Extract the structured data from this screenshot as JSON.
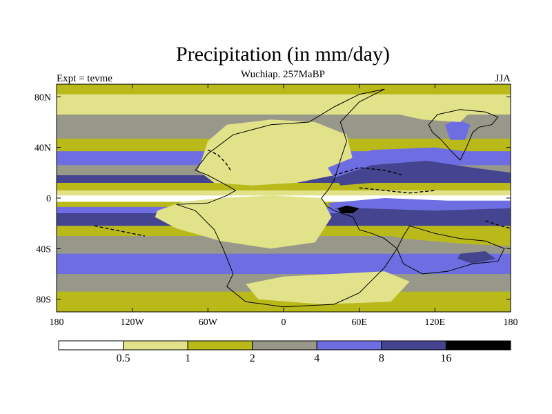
{
  "chart_data": {
    "type": "heatmap",
    "title": "Precipitation (in mm/day)",
    "subtitle": "Wuchiap. 257MaBP",
    "left_label": "Expt = tevme",
    "right_label": "JJA",
    "xlabel": "",
    "ylabel": "",
    "xlim": [
      -180,
      180
    ],
    "ylim": [
      -90,
      90
    ],
    "x_ticks": [
      {
        "value": -180,
        "label": "180"
      },
      {
        "value": -120,
        "label": "120W"
      },
      {
        "value": -60,
        "label": "60W"
      },
      {
        "value": 0,
        "label": "0"
      },
      {
        "value": 60,
        "label": "60E"
      },
      {
        "value": 120,
        "label": "120E"
      },
      {
        "value": 180,
        "label": "180"
      }
    ],
    "y_ticks": [
      {
        "value": 80,
        "label": "80N"
      },
      {
        "value": 40,
        "label": "40N"
      },
      {
        "value": 0,
        "label": "0"
      },
      {
        "value": -40,
        "label": "40S"
      },
      {
        "value": -80,
        "label": "80S"
      }
    ],
    "colorbar": {
      "levels": [
        "0.5",
        "1",
        "2",
        "4",
        "8",
        "16"
      ],
      "colors": [
        "#ffffff",
        "#e2e28a",
        "#b9b91a",
        "#98988a",
        "#6e6ee2",
        "#444490",
        "#000000"
      ]
    },
    "zonal_bands": [
      {
        "lat_top": 90,
        "lat_bottom": 82,
        "color_index": 2
      },
      {
        "lat_top": 82,
        "lat_bottom": 66,
        "color_index": 1
      },
      {
        "lat_top": 66,
        "lat_bottom": 47,
        "color_index": 3
      },
      {
        "lat_top": 47,
        "lat_bottom": 37,
        "color_index": 2
      },
      {
        "lat_top": 37,
        "lat_bottom": 26,
        "color_index": 4
      },
      {
        "lat_top": 26,
        "lat_bottom": 18,
        "color_index": 3
      },
      {
        "lat_top": 18,
        "lat_bottom": 12,
        "color_index": 5
      },
      {
        "lat_top": 12,
        "lat_bottom": 6,
        "color_index": 2
      },
      {
        "lat_top": 6,
        "lat_bottom": 2,
        "color_index": 1
      },
      {
        "lat_top": 2,
        "lat_bottom": -3,
        "color_index": 0
      },
      {
        "lat_top": -3,
        "lat_bottom": -7,
        "color_index": 2
      },
      {
        "lat_top": -7,
        "lat_bottom": -12,
        "color_index": 4
      },
      {
        "lat_top": -12,
        "lat_bottom": -22,
        "color_index": 5
      },
      {
        "lat_top": -22,
        "lat_bottom": -30,
        "color_index": 2
      },
      {
        "lat_top": -30,
        "lat_bottom": -44,
        "color_index": 3
      },
      {
        "lat_top": -44,
        "lat_bottom": -60,
        "color_index": 4
      },
      {
        "lat_top": -60,
        "lat_bottom": -74,
        "color_index": 3
      },
      {
        "lat_top": -74,
        "lat_bottom": -90,
        "color_index": 2
      }
    ],
    "regions": [
      {
        "name": "NH interior dry zone",
        "color_index": 0,
        "lonlat": [
          [
            -55,
            35
          ],
          [
            -40,
            50
          ],
          [
            -15,
            55
          ],
          [
            20,
            52
          ],
          [
            40,
            45
          ],
          [
            45,
            30
          ],
          [
            35,
            22
          ],
          [
            15,
            20
          ],
          [
            -10,
            22
          ],
          [
            -30,
            18
          ],
          [
            -50,
            20
          ],
          [
            -58,
            28
          ]
        ]
      },
      {
        "name": "NH dry margin",
        "color_index": 1,
        "lonlat": [
          [
            -65,
            30
          ],
          [
            -60,
            45
          ],
          [
            -45,
            58
          ],
          [
            -10,
            62
          ],
          [
            25,
            60
          ],
          [
            50,
            50
          ],
          [
            55,
            30
          ],
          [
            40,
            18
          ],
          [
            10,
            12
          ],
          [
            -25,
            10
          ],
          [
            -55,
            12
          ],
          [
            -68,
            22
          ]
        ]
      },
      {
        "name": "SH interior dry zone",
        "color_index": 0,
        "lonlat": [
          [
            -90,
            -10
          ],
          [
            -70,
            -4
          ],
          [
            -40,
            -3
          ],
          [
            0,
            -2
          ],
          [
            25,
            -6
          ],
          [
            30,
            -20
          ],
          [
            10,
            -30
          ],
          [
            -20,
            -32
          ],
          [
            -50,
            -22
          ],
          [
            -75,
            -18
          ],
          [
            -92,
            -14
          ]
        ]
      },
      {
        "name": "SH dry margin",
        "color_index": 1,
        "lonlat": [
          [
            -100,
            -10
          ],
          [
            -80,
            -3
          ],
          [
            -50,
            0
          ],
          [
            -10,
            2
          ],
          [
            30,
            0
          ],
          [
            38,
            -15
          ],
          [
            25,
            -35
          ],
          [
            -10,
            -40
          ],
          [
            -50,
            -34
          ],
          [
            -85,
            -24
          ],
          [
            -102,
            -15
          ]
        ]
      },
      {
        "name": "Southern high-latitude dry patch",
        "color_index": 0,
        "lonlat": [
          [
            50,
            -68
          ],
          [
            70,
            -64
          ],
          [
            90,
            -70
          ],
          [
            80,
            -80
          ],
          [
            55,
            -80
          ],
          [
            45,
            -74
          ]
        ]
      },
      {
        "name": "Southern high-latitude margin",
        "color_index": 1,
        "lonlat": [
          [
            -30,
            -68
          ],
          [
            0,
            -62
          ],
          [
            40,
            -60
          ],
          [
            80,
            -58
          ],
          [
            100,
            -66
          ],
          [
            85,
            -82
          ],
          [
            30,
            -84
          ],
          [
            -20,
            -80
          ]
        ]
      },
      {
        "name": "Tethys wet band",
        "color_index": 5,
        "lonlat": [
          [
            40,
            18
          ],
          [
            70,
            28
          ],
          [
            110,
            30
          ],
          [
            150,
            24
          ],
          [
            180,
            20
          ],
          [
            180,
            12
          ],
          [
            150,
            14
          ],
          [
            110,
            16
          ],
          [
            70,
            12
          ],
          [
            45,
            10
          ]
        ]
      },
      {
        "name": "Tethys wet fringe",
        "color_index": 4,
        "lonlat": [
          [
            35,
            24
          ],
          [
            70,
            38
          ],
          [
            120,
            40
          ],
          [
            180,
            32
          ],
          [
            180,
            26
          ],
          [
            120,
            30
          ],
          [
            70,
            26
          ],
          [
            40,
            16
          ]
        ]
      },
      {
        "name": "Eastern wet cell",
        "color_index": 5,
        "lonlat": [
          [
            40,
            -8
          ],
          [
            70,
            -4
          ],
          [
            110,
            -8
          ],
          [
            150,
            -6
          ],
          [
            180,
            -6
          ],
          [
            180,
            -20
          ],
          [
            140,
            -22
          ],
          [
            90,
            -18
          ],
          [
            55,
            -14
          ]
        ]
      },
      {
        "name": "Eastern wet cell fringe",
        "color_index": 4,
        "lonlat": [
          [
            35,
            -4
          ],
          [
            80,
            0
          ],
          [
            130,
            -2
          ],
          [
            180,
            -2
          ],
          [
            180,
            -8
          ],
          [
            120,
            -10
          ],
          [
            60,
            -8
          ],
          [
            38,
            -8
          ]
        ]
      },
      {
        "name": "Subtropical dry tongue east",
        "color_index": 2,
        "lonlat": [
          [
            80,
            -22
          ],
          [
            120,
            -26
          ],
          [
            170,
            -30
          ],
          [
            180,
            -30
          ],
          [
            180,
            -38
          ],
          [
            140,
            -36
          ],
          [
            95,
            -32
          ],
          [
            75,
            -28
          ]
        ]
      },
      {
        "name": "Northern highland wet",
        "color_index": 4,
        "lonlat": [
          [
            128,
            58
          ],
          [
            138,
            62
          ],
          [
            148,
            58
          ],
          [
            144,
            46
          ],
          [
            132,
            46
          ]
        ]
      },
      {
        "name": "Subpolar dry patch",
        "color_index": 1,
        "lonlat": [
          [
            90,
            72
          ],
          [
            120,
            74
          ],
          [
            150,
            70
          ],
          [
            140,
            60
          ],
          [
            110,
            62
          ],
          [
            92,
            66
          ]
        ]
      },
      {
        "name": "Southern wet cell",
        "color_index": 5,
        "lonlat": [
          [
            140,
            -44
          ],
          [
            160,
            -42
          ],
          [
            168,
            -48
          ],
          [
            150,
            -52
          ],
          [
            138,
            -48
          ]
        ]
      },
      {
        "name": "Maximum precipitation core",
        "color_index": 6,
        "lonlat": [
          [
            43,
            -8
          ],
          [
            50,
            -6
          ],
          [
            60,
            -8
          ],
          [
            55,
            -12
          ],
          [
            45,
            -12
          ]
        ]
      }
    ],
    "coastlines": [
      {
        "name": "Pangea",
        "lonlat": [
          [
            -60,
            18
          ],
          [
            -70,
            22
          ],
          [
            -60,
            35
          ],
          [
            -40,
            50
          ],
          [
            -10,
            58
          ],
          [
            20,
            60
          ],
          [
            40,
            72
          ],
          [
            60,
            82
          ],
          [
            80,
            86
          ],
          [
            60,
            76
          ],
          [
            45,
            60
          ],
          [
            50,
            45
          ],
          [
            45,
            30
          ],
          [
            40,
            14
          ],
          [
            35,
            6
          ],
          [
            30,
            0
          ],
          [
            34,
            -6
          ],
          [
            40,
            -10
          ],
          [
            55,
            -15
          ],
          [
            60,
            -25
          ],
          [
            70,
            -28
          ],
          [
            80,
            -32
          ],
          [
            90,
            -40
          ],
          [
            80,
            -55
          ],
          [
            70,
            -65
          ],
          [
            60,
            -75
          ],
          [
            40,
            -84
          ],
          [
            0,
            -86
          ],
          [
            -30,
            -82
          ],
          [
            -45,
            -70
          ],
          [
            -40,
            -60
          ],
          [
            -48,
            -40
          ],
          [
            -55,
            -25
          ],
          [
            -70,
            -10
          ],
          [
            -85,
            -5
          ],
          [
            -60,
            -4
          ],
          [
            -45,
            2
          ],
          [
            -38,
            6
          ],
          [
            -45,
            10
          ],
          [
            -60,
            18
          ]
        ]
      },
      {
        "name": "Eastern block",
        "lonlat": [
          [
            115,
            58
          ],
          [
            122,
            66
          ],
          [
            140,
            70
          ],
          [
            160,
            68
          ],
          [
            170,
            64
          ],
          [
            165,
            58
          ],
          [
            155,
            56
          ],
          [
            150,
            52
          ],
          [
            145,
            40
          ],
          [
            140,
            30
          ],
          [
            132,
            38
          ],
          [
            125,
            46
          ],
          [
            118,
            52
          ],
          [
            115,
            58
          ]
        ]
      },
      {
        "name": "Southern landmass",
        "lonlat": [
          [
            100,
            -22
          ],
          [
            120,
            -28
          ],
          [
            140,
            -32
          ],
          [
            160,
            -34
          ],
          [
            175,
            -40
          ],
          [
            170,
            -50
          ],
          [
            150,
            -52
          ],
          [
            130,
            -58
          ],
          [
            110,
            -60
          ],
          [
            95,
            -52
          ],
          [
            90,
            -40
          ],
          [
            95,
            -30
          ],
          [
            100,
            -22
          ]
        ]
      },
      {
        "name": "Island arc 1",
        "lonlat": [
          [
            -60,
            38
          ],
          [
            -52,
            34
          ],
          [
            -46,
            28
          ],
          [
            -42,
            22
          ]
        ]
      },
      {
        "name": "Island arc 2",
        "lonlat": [
          [
            40,
            18
          ],
          [
            60,
            24
          ],
          [
            80,
            22
          ],
          [
            95,
            18
          ]
        ]
      },
      {
        "name": "Island arc 3",
        "lonlat": [
          [
            60,
            8
          ],
          [
            80,
            6
          ],
          [
            100,
            4
          ],
          [
            120,
            6
          ]
        ]
      },
      {
        "name": "Island arc 4",
        "lonlat": [
          [
            -150,
            -22
          ],
          [
            -130,
            -26
          ],
          [
            -110,
            -30
          ]
        ]
      },
      {
        "name": "Island arc 5",
        "lonlat": [
          [
            160,
            -18
          ],
          [
            172,
            -22
          ],
          [
            180,
            -24
          ]
        ]
      }
    ]
  }
}
